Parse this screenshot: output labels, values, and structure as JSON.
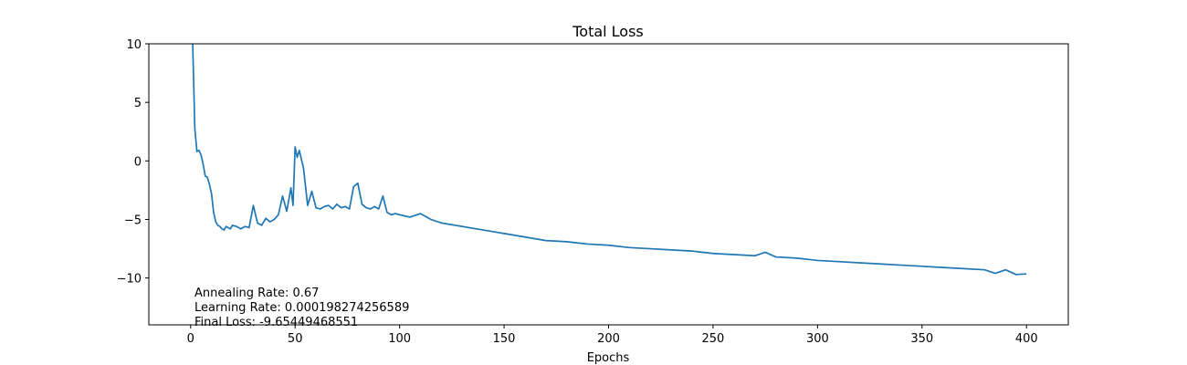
{
  "chart_data": {
    "type": "line",
    "title": "Total Loss",
    "xlabel": "Epochs",
    "ylabel": "",
    "xlim": [
      -20,
      420
    ],
    "ylim": [
      -14,
      10
    ],
    "xticks": [
      0,
      50,
      100,
      150,
      200,
      250,
      300,
      350,
      400
    ],
    "yticks": [
      -10,
      -5,
      0,
      5,
      10
    ],
    "grid": false,
    "legend": "none",
    "colors": {
      "series": "#1f77b4",
      "axes": "#000000",
      "background": "#ffffff"
    },
    "annotations": [
      "Annealing Rate: 0.67",
      "Learning Rate: 0.000198274256589",
      "Final Loss: -9.65449468551"
    ],
    "series": [
      {
        "color": "#1f77b4",
        "x": [
          1,
          2,
          3,
          4,
          5,
          6,
          7,
          8,
          9,
          10,
          11,
          12,
          13,
          14,
          15,
          16,
          17,
          18,
          19,
          20,
          22,
          24,
          26,
          28,
          30,
          32,
          34,
          36,
          38,
          40,
          42,
          44,
          46,
          48,
          49,
          50,
          51,
          52,
          54,
          56,
          58,
          60,
          62,
          64,
          66,
          68,
          70,
          72,
          74,
          76,
          78,
          80,
          82,
          84,
          86,
          88,
          90,
          92,
          94,
          96,
          98,
          100,
          105,
          110,
          115,
          120,
          130,
          140,
          150,
          160,
          170,
          180,
          190,
          200,
          210,
          220,
          230,
          240,
          250,
          260,
          270,
          275,
          280,
          290,
          300,
          310,
          320,
          330,
          340,
          350,
          360,
          370,
          380,
          385,
          390,
          395,
          400
        ],
        "y": [
          10,
          2.8,
          0.8,
          0.9,
          0.5,
          -0.3,
          -1.3,
          -1.4,
          -2.0,
          -2.8,
          -4.4,
          -5.2,
          -5.5,
          -5.6,
          -5.8,
          -5.9,
          -5.6,
          -5.7,
          -5.8,
          -5.5,
          -5.6,
          -5.8,
          -5.6,
          -5.7,
          -3.8,
          -5.3,
          -5.5,
          -4.9,
          -5.2,
          -5.0,
          -4.6,
          -3.0,
          -4.3,
          -2.3,
          -3.8,
          1.2,
          0.3,
          0.9,
          -0.6,
          -3.8,
          -2.6,
          -4.0,
          -4.1,
          -3.9,
          -3.8,
          -4.1,
          -3.7,
          -4.0,
          -3.9,
          -4.1,
          -2.2,
          -1.9,
          -3.7,
          -4.0,
          -4.1,
          -3.9,
          -4.1,
          -3.0,
          -4.4,
          -4.6,
          -4.5,
          -4.6,
          -4.8,
          -4.5,
          -5.0,
          -5.3,
          -5.6,
          -5.9,
          -6.2,
          -6.5,
          -6.8,
          -6.9,
          -7.1,
          -7.2,
          -7.4,
          -7.5,
          -7.6,
          -7.7,
          -7.9,
          -8.0,
          -8.1,
          -7.8,
          -8.2,
          -8.3,
          -8.5,
          -8.6,
          -8.7,
          -8.8,
          -8.9,
          -9.0,
          -9.1,
          -9.2,
          -9.3,
          -9.6,
          -9.3,
          -9.7,
          -9.65
        ]
      }
    ]
  }
}
